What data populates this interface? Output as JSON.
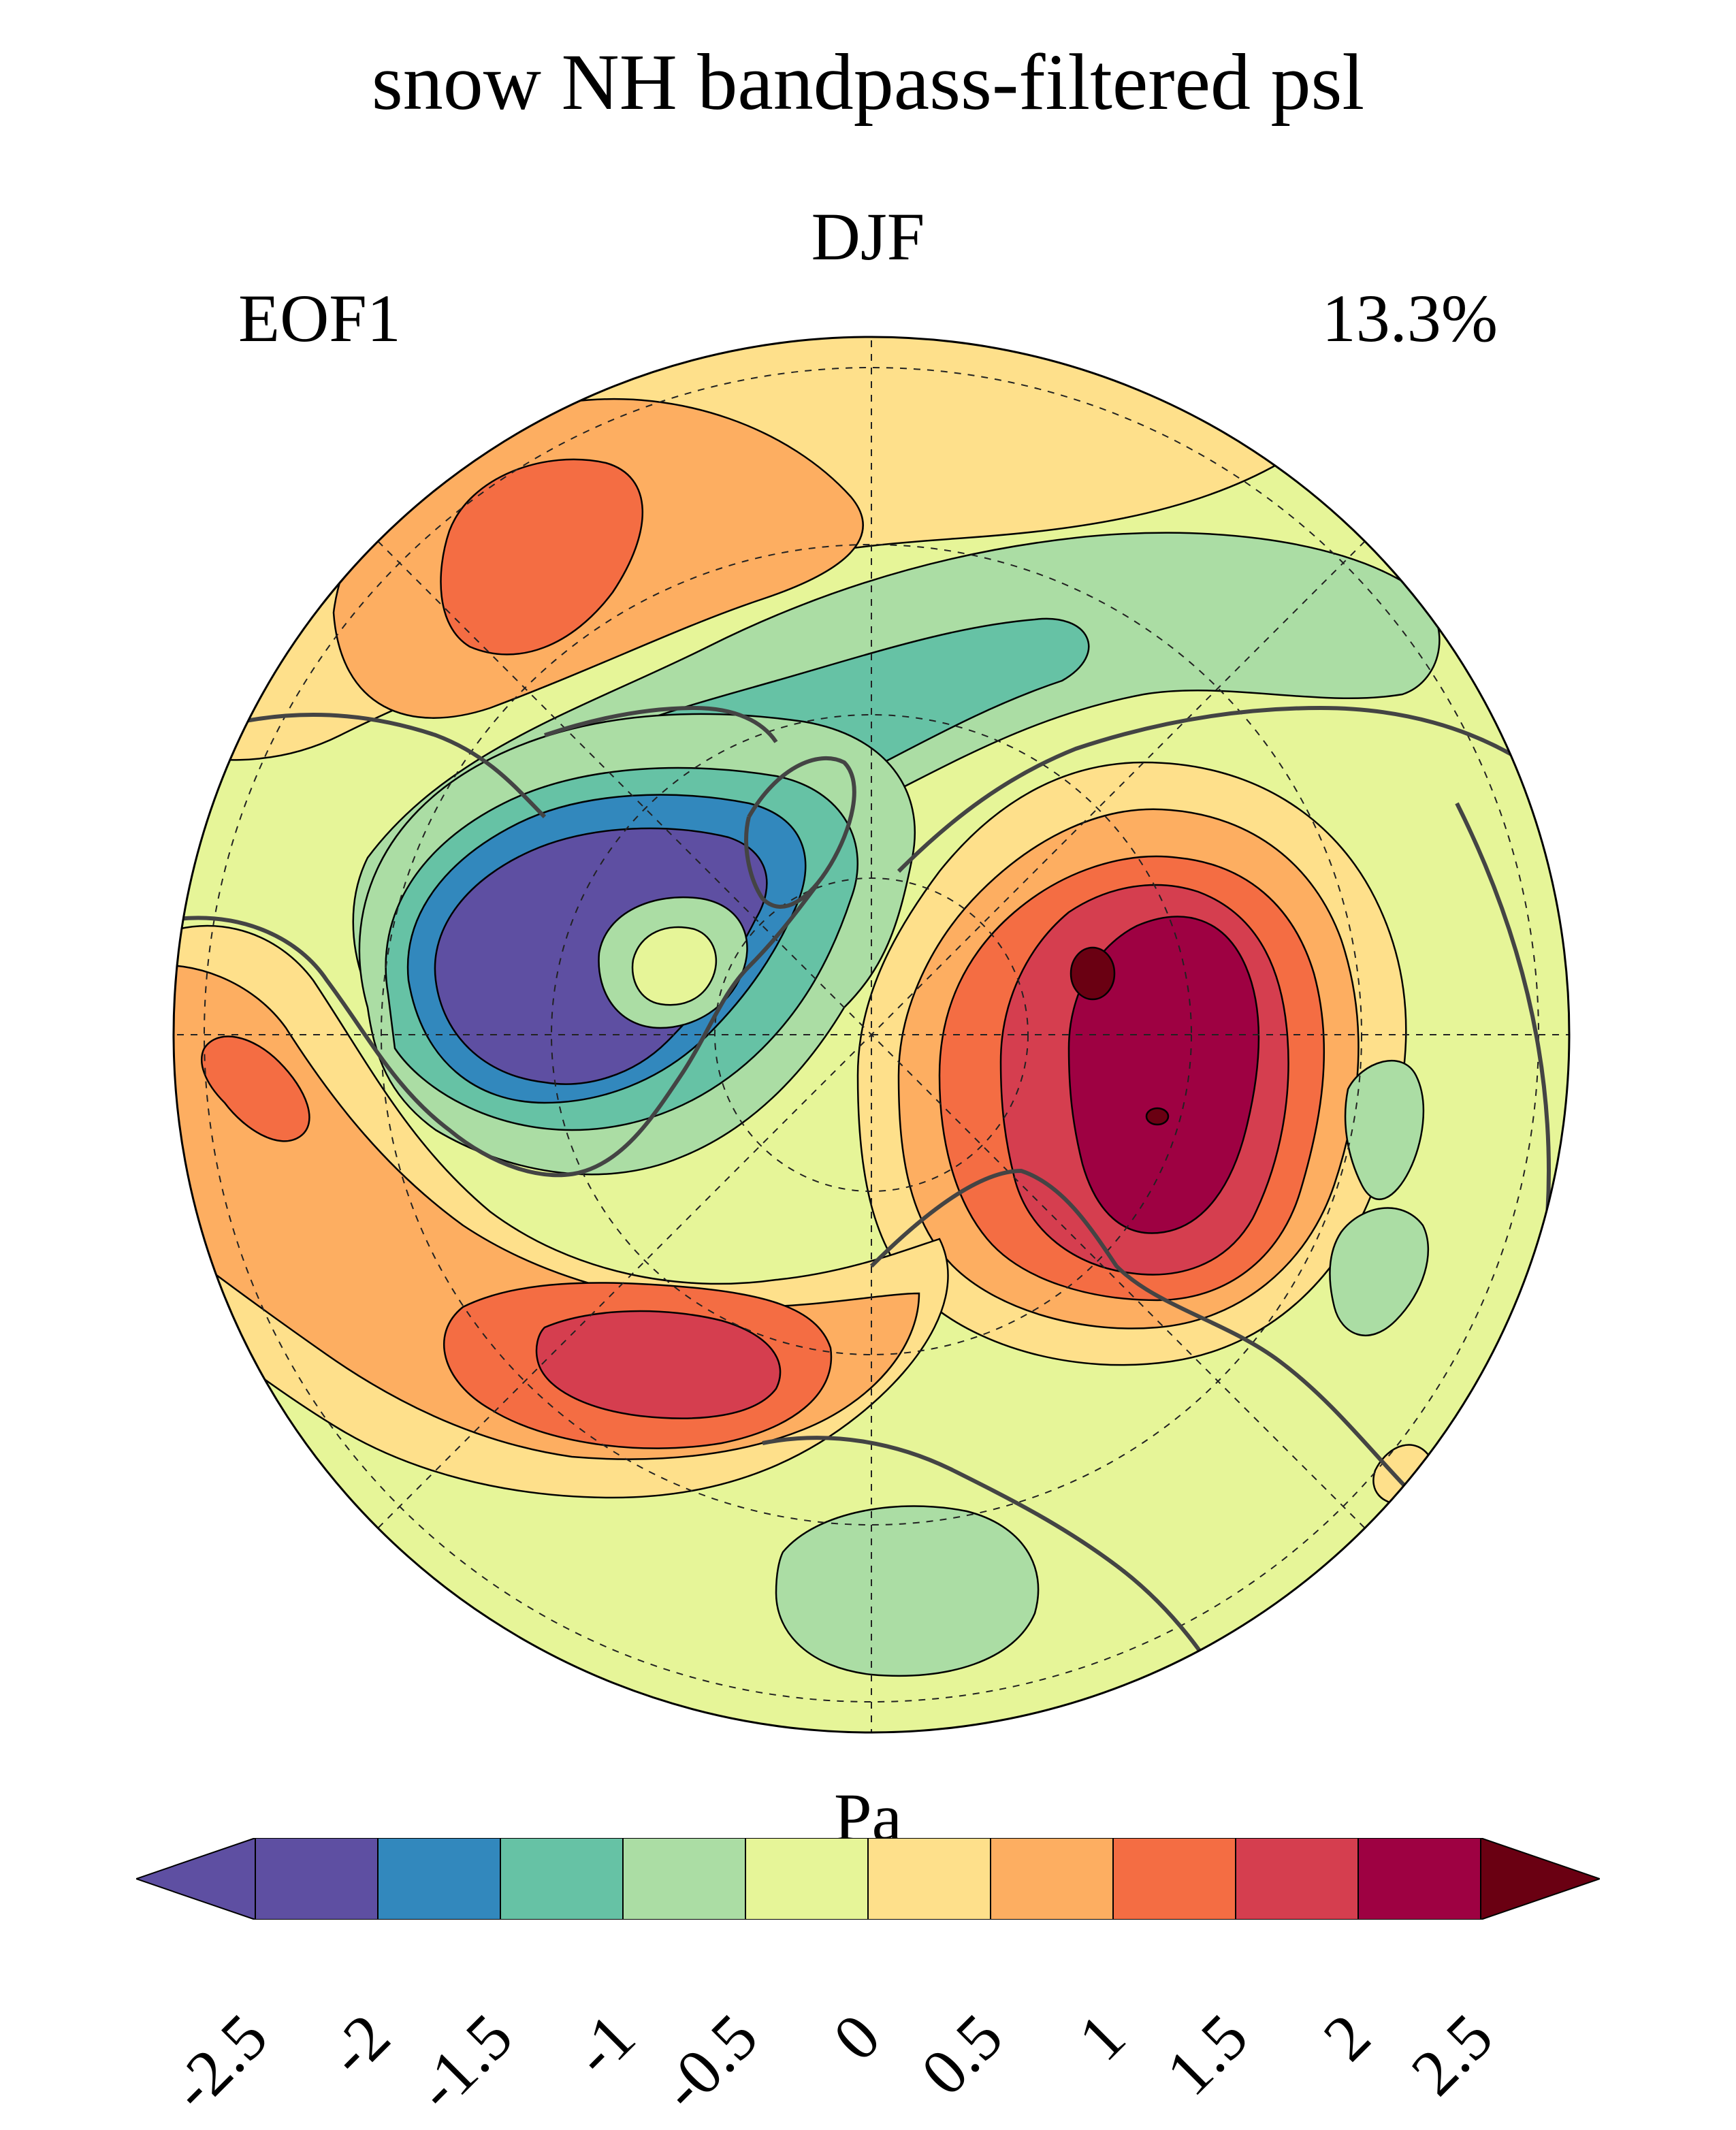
{
  "figure": {
    "title": "snow NH bandpass-filtered psl",
    "season": "DJF",
    "mode_label": "EOF1",
    "variance_explained": "13.3%"
  },
  "colorbar": {
    "unit_label": "Pa",
    "tick_labels": [
      "-2.5",
      "-2",
      "-1.5",
      "-1",
      "-0.5",
      "0",
      "0.5",
      "1",
      "1.5",
      "2",
      "2.5"
    ],
    "levels": [
      -2.5,
      -2,
      -1.5,
      -1,
      -0.5,
      0,
      0.5,
      1,
      1.5,
      2,
      2.5
    ],
    "colors": [
      "#5e4fa2",
      "#5e4fa2",
      "#3288bd",
      "#66c2a5",
      "#abdda4",
      "#e6f598",
      "#fee08b",
      "#fdae61",
      "#f46d43",
      "#d53e4f",
      "#9e0142",
      "#6a0012"
    ],
    "extend": "both"
  },
  "map": {
    "projection": "north-polar-stereographic",
    "boundary": "circle",
    "gridlines": "dashed",
    "coastlines": true,
    "colors": {
      "neutral": "#e6f598",
      "weak_pos": "#fee08b",
      "pos": "#fdae61",
      "pos2": "#f46d43",
      "pos3": "#d53e4f",
      "pos4": "#9e0142",
      "pos5": "#6a0012",
      "weak_neg": "#abdda4",
      "neg": "#66c2a5",
      "neg2": "#3288bd",
      "neg3": "#5e4fa2"
    }
  }
}
